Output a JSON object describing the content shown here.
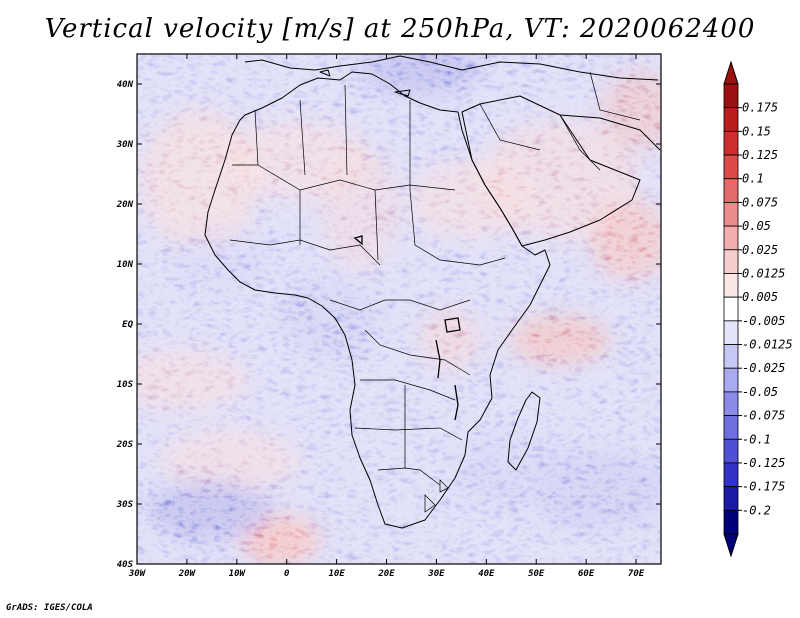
{
  "title": "Vertical velocity [m/s] at 250hPa, VT: 2020062400",
  "credit": "GrADS: IGES/COLA",
  "axes": {
    "lon_ticks": [
      "30W",
      "20W",
      "10W",
      "0",
      "10E",
      "20E",
      "30E",
      "40E",
      "50E",
      "60E",
      "70E"
    ],
    "lat_ticks": [
      "40N",
      "30N",
      "20N",
      "10N",
      "EQ",
      "10S",
      "20S",
      "30S",
      "40S"
    ]
  },
  "colorbar": {
    "labels": [
      "0.175",
      "0.15",
      "0.125",
      "0.1",
      "0.075",
      "0.05",
      "0.025",
      "0.0125",
      "0.005",
      "-0.005",
      "-0.0125",
      "-0.025",
      "-0.05",
      "-0.075",
      "-0.1",
      "-0.125",
      "-0.175",
      "-0.2"
    ],
    "colors": [
      "#9b1010",
      "#b81c1c",
      "#cc2e2e",
      "#dc4a4a",
      "#e46a6a",
      "#ec8c8c",
      "#f2adad",
      "#f7cdcd",
      "#fbe6e6",
      "#ffffff",
      "#e4e4fb",
      "#c8c8f6",
      "#aaaaf0",
      "#8c8ce8",
      "#6e6ee0",
      "#5050d6",
      "#3232c4",
      "#1a1aa6",
      "#00007a"
    ],
    "arrow_top_color": "#9b1010",
    "arrow_bottom_color": "#00007a"
  },
  "chart_data": {
    "type": "heatmap",
    "title": "Vertical velocity [m/s] at 250hPa, VT: 2020062400",
    "x_range": [
      -30,
      75
    ],
    "y_range": [
      -40,
      45
    ],
    "x_ticks": [
      -30,
      -20,
      -10,
      0,
      10,
      20,
      30,
      40,
      50,
      60,
      70
    ],
    "y_ticks": [
      40,
      30,
      20,
      10,
      0,
      -10,
      -20,
      -30,
      -40
    ],
    "color_levels": [
      0.175,
      0.15,
      0.125,
      0.1,
      0.075,
      0.05,
      0.025,
      0.0125,
      0.005,
      -0.005,
      -0.0125,
      -0.025,
      -0.05,
      -0.075,
      -0.1,
      -0.125,
      -0.175,
      -0.2
    ],
    "grid": false
  }
}
